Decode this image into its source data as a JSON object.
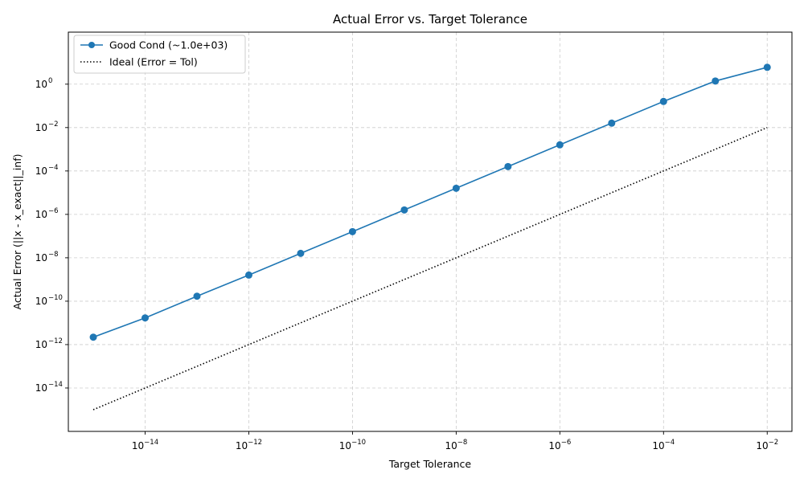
{
  "chart_data": {
    "type": "line",
    "title": "Actual Error vs. Target Tolerance",
    "xlabel": "Target Tolerance",
    "ylabel": "Actual Error (||x - x_exact||_inf)",
    "xscale": "log",
    "yscale": "log",
    "xlim": [
      3.3e-16,
      0.03
    ],
    "ylim": [
      1e-16,
      250
    ],
    "grid": true,
    "legend_position": "top-left",
    "x_ticks": [
      {
        "base": "10",
        "exp": "−14",
        "value": 1e-14
      },
      {
        "base": "10",
        "exp": "−12",
        "value": 1e-12
      },
      {
        "base": "10",
        "exp": "−10",
        "value": 1e-10
      },
      {
        "base": "10",
        "exp": "−8",
        "value": 1e-08
      },
      {
        "base": "10",
        "exp": "−6",
        "value": 1e-06
      },
      {
        "base": "10",
        "exp": "−4",
        "value": 0.0001
      },
      {
        "base": "10",
        "exp": "−2",
        "value": 0.01
      }
    ],
    "y_ticks": [
      {
        "base": "10",
        "exp": "0",
        "value": 1
      },
      {
        "base": "10",
        "exp": "−2",
        "value": 0.01
      },
      {
        "base": "10",
        "exp": "−4",
        "value": 0.0001
      },
      {
        "base": "10",
        "exp": "−6",
        "value": 1e-06
      },
      {
        "base": "10",
        "exp": "−8",
        "value": 1e-08
      },
      {
        "base": "10",
        "exp": "−10",
        "value": 1e-10
      },
      {
        "base": "10",
        "exp": "−12",
        "value": 1e-12
      },
      {
        "base": "10",
        "exp": "−14",
        "value": 1e-14
      }
    ],
    "series": [
      {
        "name": "Good Cond (~1.0e+03)",
        "color": "#1f77b4",
        "style": "solid",
        "marker": "circle",
        "x": [
          1e-15,
          1e-14,
          1e-13,
          1e-12,
          1e-11,
          1e-10,
          1e-09,
          1e-08,
          1e-07,
          1e-06,
          1e-05,
          0.0001,
          0.001,
          0.01
        ],
        "y": [
          2.2e-12,
          1.7e-11,
          1.7e-10,
          1.6e-09,
          1.6e-08,
          1.6e-07,
          1.6e-06,
          1.6e-05,
          0.00016,
          0.0016,
          0.016,
          0.16,
          1.4,
          6.0
        ]
      },
      {
        "name": "Ideal (Error = Tol)",
        "color": "#000000",
        "style": "dotted",
        "marker": "none",
        "x": [
          1e-15,
          1e-14,
          1e-13,
          1e-12,
          1e-11,
          1e-10,
          1e-09,
          1e-08,
          1e-07,
          1e-06,
          1e-05,
          0.0001,
          0.001,
          0.01
        ],
        "y": [
          1e-15,
          1e-14,
          1e-13,
          1e-12,
          1e-11,
          1e-10,
          1e-09,
          1e-08,
          1e-07,
          1e-06,
          1e-05,
          0.0001,
          0.001,
          0.01
        ]
      }
    ]
  }
}
